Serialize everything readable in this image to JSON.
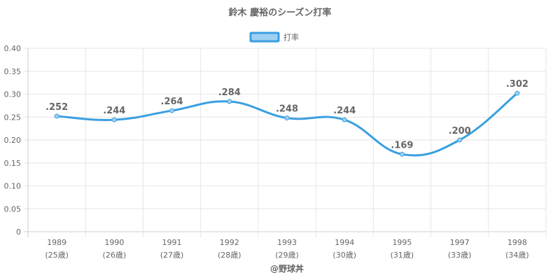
{
  "chart_data": {
    "type": "line",
    "title": "鈴木 慶裕のシーズン打率",
    "legend": {
      "label": "打率",
      "position": "top-center"
    },
    "categories": [
      "1989",
      "1990",
      "1991",
      "1992",
      "1993",
      "1994",
      "1995",
      "1997",
      "1998"
    ],
    "category_sublabels": [
      "(25歳)",
      "(26歳)",
      "(27歳)",
      "(28歳)",
      "(29歳)",
      "(30歳)",
      "(31歳)",
      "(33歳)",
      "(34歳)"
    ],
    "series": [
      {
        "name": "打率",
        "values": [
          0.252,
          0.244,
          0.264,
          0.284,
          0.248,
          0.244,
          0.169,
          0.2,
          0.302
        ],
        "labels": [
          ".252",
          ".244",
          ".264",
          ".284",
          ".248",
          ".244",
          ".169",
          ".200",
          ".302"
        ]
      }
    ],
    "ylim": [
      0,
      0.4
    ],
    "yticks": [
      "0",
      "0.05",
      "0.10",
      "0.15",
      "0.20",
      "0.25",
      "0.30",
      "0.35",
      "0.40"
    ],
    "grid": true,
    "colors": {
      "line": "#3a9fe0",
      "fill": "#9fd0f3",
      "text": "#666666"
    },
    "credit": "@野球丼"
  }
}
